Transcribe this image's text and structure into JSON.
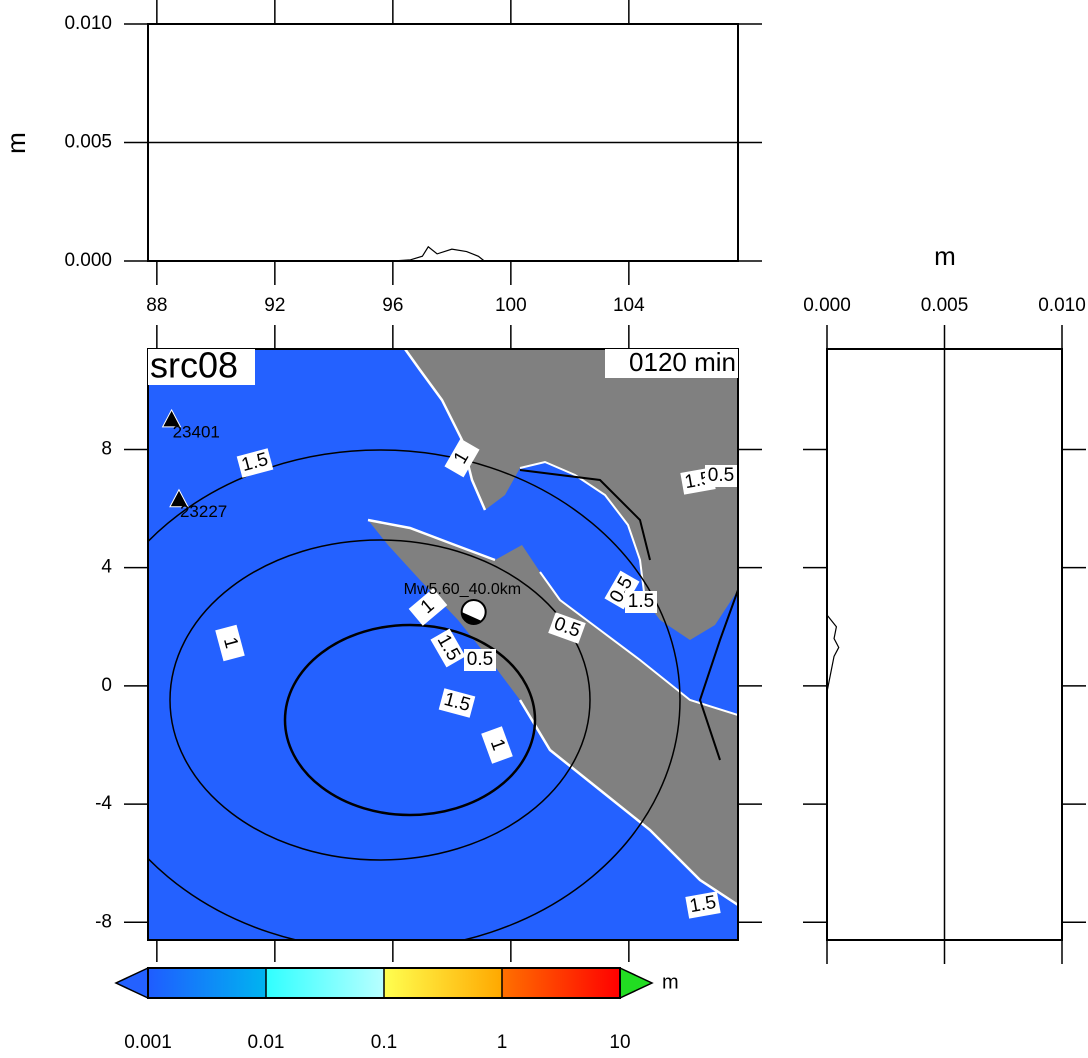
{
  "top_panel": {
    "ylabel": "m",
    "xlim": [
      87.7,
      107.7
    ],
    "ylim": [
      0,
      0.01
    ],
    "xticks": [
      88,
      92,
      96,
      100,
      104
    ],
    "yticks": [
      {
        "value": 0,
        "label": "0.000"
      },
      {
        "value": 0.005,
        "label": "0.005"
      },
      {
        "value": 0.01,
        "label": "0.010"
      }
    ],
    "grid": true,
    "profile": {
      "x": [
        96,
        96.6,
        97,
        97.2,
        97.5,
        98,
        98.5,
        98.9,
        99.1
      ],
      "values": [
        0,
        5e-05,
        0.0002,
        0.0006,
        0.0003,
        0.0005,
        0.0004,
        0.0002,
        0
      ]
    }
  },
  "side_panel": {
    "xlabel": "m",
    "xlim": [
      0,
      0.01
    ],
    "xticks": [
      {
        "value": 0,
        "label": "0.000"
      },
      {
        "value": 0.005,
        "label": "0.005"
      },
      {
        "value": 0.01,
        "label": "0.010"
      }
    ],
    "grid": true,
    "profile": {
      "y": [
        -0.2,
        0.2,
        0.6,
        1.0,
        1.3,
        1.6,
        2.0,
        2.2,
        2.4
      ],
      "values": [
        0,
        0.0001,
        0.0002,
        0.0003,
        0.0005,
        0.0003,
        0.0004,
        0.0002,
        0
      ]
    }
  },
  "map": {
    "title": "src08",
    "time": "0120 min",
    "xlim": [
      87.7,
      107.7
    ],
    "ylim": [
      -8.6,
      11.4
    ],
    "yticks": [
      8,
      4,
      0,
      -4,
      -8
    ],
    "sea_color": "#2461ff",
    "land_color": "#808080",
    "stations": [
      {
        "name": "23401",
        "lon": 88.5,
        "lat": 9.0
      },
      {
        "name": "23227",
        "lon": 88.75,
        "lat": 6.3
      }
    ],
    "epicenter": {
      "label": "Mw5.60_40.0km",
      "lon": 98.74,
      "lat": 2.5
    },
    "contour_labels": [
      "1.5",
      "1",
      "1.5",
      "0.5",
      "1",
      "1",
      "1.5",
      "0.5",
      "0.5",
      "0.5",
      "1.5",
      "1.5",
      "1",
      "1.5"
    ]
  },
  "colorbar": {
    "unit": "m",
    "log_scale": true,
    "ticks": [
      0.001,
      0.01,
      0.1,
      1,
      10
    ],
    "colors": [
      [
        "#1f5cff",
        "#00b4f0"
      ],
      [
        "#30ffff",
        "#b8ffff"
      ],
      [
        "#ffff50",
        "#ffa800"
      ],
      [
        "#ff7000",
        "#ff0000"
      ]
    ],
    "under_color": "#2461ff",
    "over_color": "#22dd22"
  }
}
